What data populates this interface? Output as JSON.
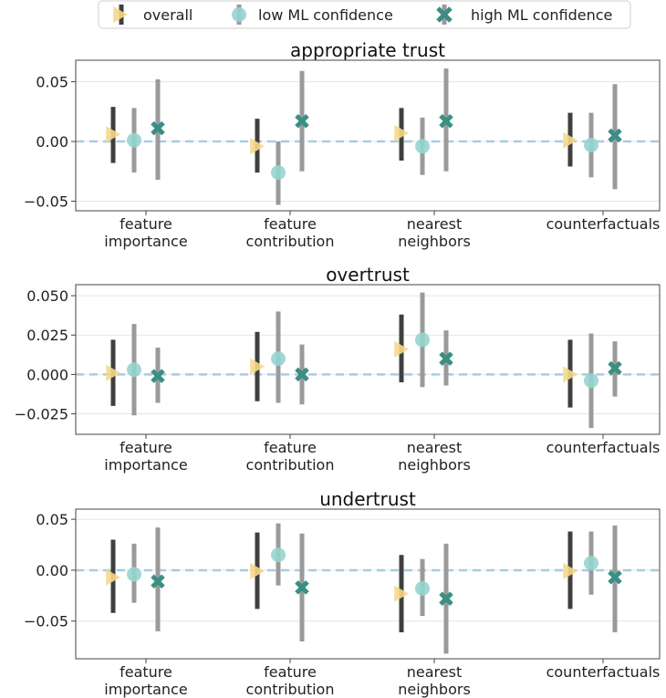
{
  "legend": {
    "position": "top-center",
    "entries": [
      {
        "label": "overall",
        "marker": "triangle-right",
        "bar_color": "#3f3f3f",
        "marker_color": "#f5d88a"
      },
      {
        "label": "low ML confidence",
        "marker": "circle",
        "bar_color": "#9a9a9a",
        "marker_color": "#96d5cf"
      },
      {
        "label": "high ML confidence",
        "marker": "x",
        "bar_color": "#9a9a9a",
        "marker_color": "#3a8f85"
      }
    ]
  },
  "chart_data": [
    {
      "type": "errorbar",
      "title": "appropriate trust",
      "categories": [
        "feature\nimportance",
        "feature\ncontribution",
        "nearest\nneighbors",
        "counterfactuals"
      ],
      "ylim": [
        -0.058,
        0.068
      ],
      "yticks": [
        0.05,
        0.0,
        -0.05
      ],
      "ytick_labels": [
        "0.05",
        "0.00",
        "−0.05"
      ],
      "grid": true,
      "zero_line": true,
      "series": [
        {
          "name": "overall",
          "values": [
            0.006,
            -0.004,
            0.007,
            0.001
          ],
          "lower": [
            -0.018,
            -0.026,
            -0.016,
            -0.021
          ],
          "upper": [
            0.029,
            0.019,
            0.028,
            0.024
          ]
        },
        {
          "name": "low ML confidence",
          "values": [
            0.001,
            -0.026,
            -0.004,
            -0.003
          ],
          "lower": [
            -0.026,
            -0.053,
            -0.028,
            -0.03
          ],
          "upper": [
            0.028,
            0.0,
            0.02,
            0.024
          ]
        },
        {
          "name": "high ML confidence",
          "values": [
            0.011,
            0.017,
            0.017,
            0.005
          ],
          "lower": [
            -0.032,
            -0.025,
            -0.025,
            -0.04
          ],
          "upper": [
            0.052,
            0.059,
            0.061,
            0.048
          ]
        }
      ]
    },
    {
      "type": "errorbar",
      "title": "overtrust",
      "categories": [
        "feature\nimportance",
        "feature\ncontribution",
        "nearest\nneighbors",
        "counterfactuals"
      ],
      "ylim": [
        -0.038,
        0.057
      ],
      "yticks": [
        0.05,
        0.025,
        0.0,
        -0.025
      ],
      "ytick_labels": [
        "0.050",
        "0.025",
        "0.000",
        "−0.025"
      ],
      "grid": true,
      "zero_line": true,
      "series": [
        {
          "name": "overall",
          "values": [
            0.001,
            0.005,
            0.016,
            0.0
          ],
          "lower": [
            -0.02,
            -0.017,
            -0.005,
            -0.021
          ],
          "upper": [
            0.022,
            0.027,
            0.038,
            0.022
          ]
        },
        {
          "name": "low ML confidence",
          "values": [
            0.003,
            0.01,
            0.022,
            -0.004
          ],
          "lower": [
            -0.026,
            -0.018,
            -0.008,
            -0.034
          ],
          "upper": [
            0.032,
            0.04,
            0.052,
            0.026
          ]
        },
        {
          "name": "high ML confidence",
          "values": [
            -0.001,
            0.0,
            0.01,
            0.004
          ],
          "lower": [
            -0.018,
            -0.019,
            -0.007,
            -0.014
          ],
          "upper": [
            0.017,
            0.019,
            0.028,
            0.021
          ]
        }
      ]
    },
    {
      "type": "errorbar",
      "title": "undertrust",
      "categories": [
        "feature\nimportance",
        "feature\ncontribution",
        "nearest\nneighbors",
        "counterfactuals"
      ],
      "ylim": [
        -0.087,
        0.06
      ],
      "yticks": [
        0.05,
        0.0,
        -0.05
      ],
      "ytick_labels": [
        "0.05",
        "0.00",
        "−0.05"
      ],
      "grid": true,
      "zero_line": true,
      "series": [
        {
          "name": "overall",
          "values": [
            -0.007,
            -0.001,
            -0.023,
            -0.001
          ],
          "lower": [
            -0.042,
            -0.038,
            -0.061,
            -0.038
          ],
          "upper": [
            0.03,
            0.037,
            0.015,
            0.038
          ]
        },
        {
          "name": "low ML confidence",
          "values": [
            -0.004,
            0.015,
            -0.018,
            0.007
          ],
          "lower": [
            -0.032,
            -0.015,
            -0.045,
            -0.024
          ],
          "upper": [
            0.026,
            0.046,
            0.011,
            0.038
          ]
        },
        {
          "name": "high ML confidence",
          "values": [
            -0.011,
            -0.017,
            -0.028,
            -0.007
          ],
          "lower": [
            -0.06,
            -0.07,
            -0.082,
            -0.061
          ],
          "upper": [
            0.042,
            0.036,
            0.026,
            0.044
          ]
        }
      ]
    }
  ]
}
